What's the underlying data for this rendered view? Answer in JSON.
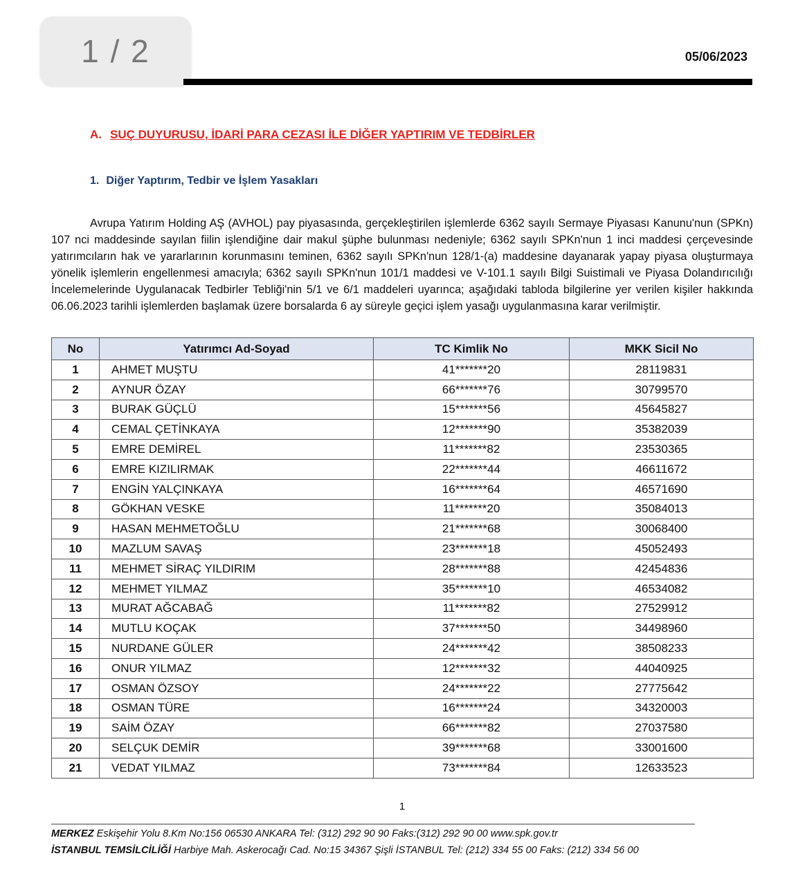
{
  "page_indicator": "1 / 2",
  "date": "05/06/2023",
  "section_a": {
    "letter": "A.",
    "title": "SUÇ DUYURUSU, İDARİ PARA CEZASI İLE DİĞER YAPTIRIM VE TEDBİRLER"
  },
  "section_1": {
    "number": "1.",
    "title": "Diğer Yaptırım, Tedbir ve İşlem Yasakları"
  },
  "paragraph": "Avrupa Yatırım Holding AŞ (AVHOL) pay piyasasında, gerçekleştirilen işlemlerde 6362 sayılı Sermaye Piyasası Kanunu'nun (SPKn) 107 nci maddesinde sayılan fiilin işlendiğine dair makul şüphe bulunması nedeniyle; 6362 sayılı SPKn'nun 1 inci maddesi çerçevesinde yatırımcıların hak ve yararlarının korunmasını teminen, 6362 sayılı SPKn'nun 128/1-(a) maddesine dayanarak yapay piyasa oluşturmaya yönelik işlemlerin engellenmesi amacıyla; 6362 sayılı SPKn'nun 101/1 maddesi ve V-101.1 sayılı Bilgi Suistimali ve Piyasa Dolandırıcılığı İncelemelerinde Uygulanacak Tedbirler Tebliği'nin 5/1 ve 6/1 maddeleri uyarınca; aşağıdaki tabloda bilgilerine yer verilen kişiler hakkında 06.06.2023 tarihli işlemlerden başlamak üzere borsalarda 6 ay süreyle geçici işlem yasağı uygulanmasına karar verilmiştir.",
  "table": {
    "headers": [
      "No",
      "Yatırımcı Ad-Soyad",
      "TC Kimlik No",
      "MKK Sicil No"
    ],
    "rows": [
      [
        "1",
        "AHMET MUŞTU",
        "41*******20",
        "28119831"
      ],
      [
        "2",
        "AYNUR ÖZAY",
        "66*******76",
        "30799570"
      ],
      [
        "3",
        "BURAK GÜÇLÜ",
        "15*******56",
        "45645827"
      ],
      [
        "4",
        "CEMAL ÇETİNKAYA",
        "12*******90",
        "35382039"
      ],
      [
        "5",
        "EMRE DEMİREL",
        "11*******82",
        "23530365"
      ],
      [
        "6",
        "EMRE KIZILIRMAK",
        "22*******44",
        "46611672"
      ],
      [
        "7",
        "ENGİN YALÇINKAYA",
        "16*******64",
        "46571690"
      ],
      [
        "8",
        "GÖKHAN VESKE",
        "11*******20",
        "35084013"
      ],
      [
        "9",
        "HASAN MEHMETOĞLU",
        "21*******68",
        "30068400"
      ],
      [
        "10",
        "MAZLUM SAVAŞ",
        "23*******18",
        "45052493"
      ],
      [
        "11",
        "MEHMET SİRAÇ YILDIRIM",
        "28*******88",
        "42454836"
      ],
      [
        "12",
        "MEHMET YILMAZ",
        "35*******10",
        "46534082"
      ],
      [
        "13",
        "MURAT AĞCABAĞ",
        "11*******82",
        "27529912"
      ],
      [
        "14",
        "MUTLU KOÇAK",
        "37*******50",
        "34498960"
      ],
      [
        "15",
        "NURDANE GÜLER",
        "24*******42",
        "38508233"
      ],
      [
        "16",
        "ONUR YILMAZ",
        "12*******32",
        "44040925"
      ],
      [
        "17",
        "OSMAN ÖZSOY",
        "24*******22",
        "27775642"
      ],
      [
        "18",
        "OSMAN TÜRE",
        "16*******24",
        "34320003"
      ],
      [
        "19",
        "SAİM ÖZAY",
        "66*******82",
        "27037580"
      ],
      [
        "20",
        "SELÇUK DEMİR",
        "39*******68",
        "33001600"
      ],
      [
        "21",
        "VEDAT YILMAZ",
        "73*******84",
        "12633523"
      ]
    ]
  },
  "page_number": "1",
  "footer": {
    "line1_bold": "MERKEZ",
    "line1": " Eskişehir Yolu 8.Km No:156 06530 ANKARA Tel: (312) 292 90 90 Faks:(312) 292 90 00 www.spk.gov.tr",
    "line2_bold": "İSTANBUL TEMSİLCİLİĞİ",
    "line2": " Harbiye Mah. Askerocağı Cad. No:15 34367 Şişli İSTANBUL Tel: (212) 334 55 00 Faks: (212) 334 56 00"
  },
  "colors": {
    "section_a": "#e8221c",
    "section_1": "#1f3f6e",
    "table_header_bg": "#dde3f0"
  }
}
